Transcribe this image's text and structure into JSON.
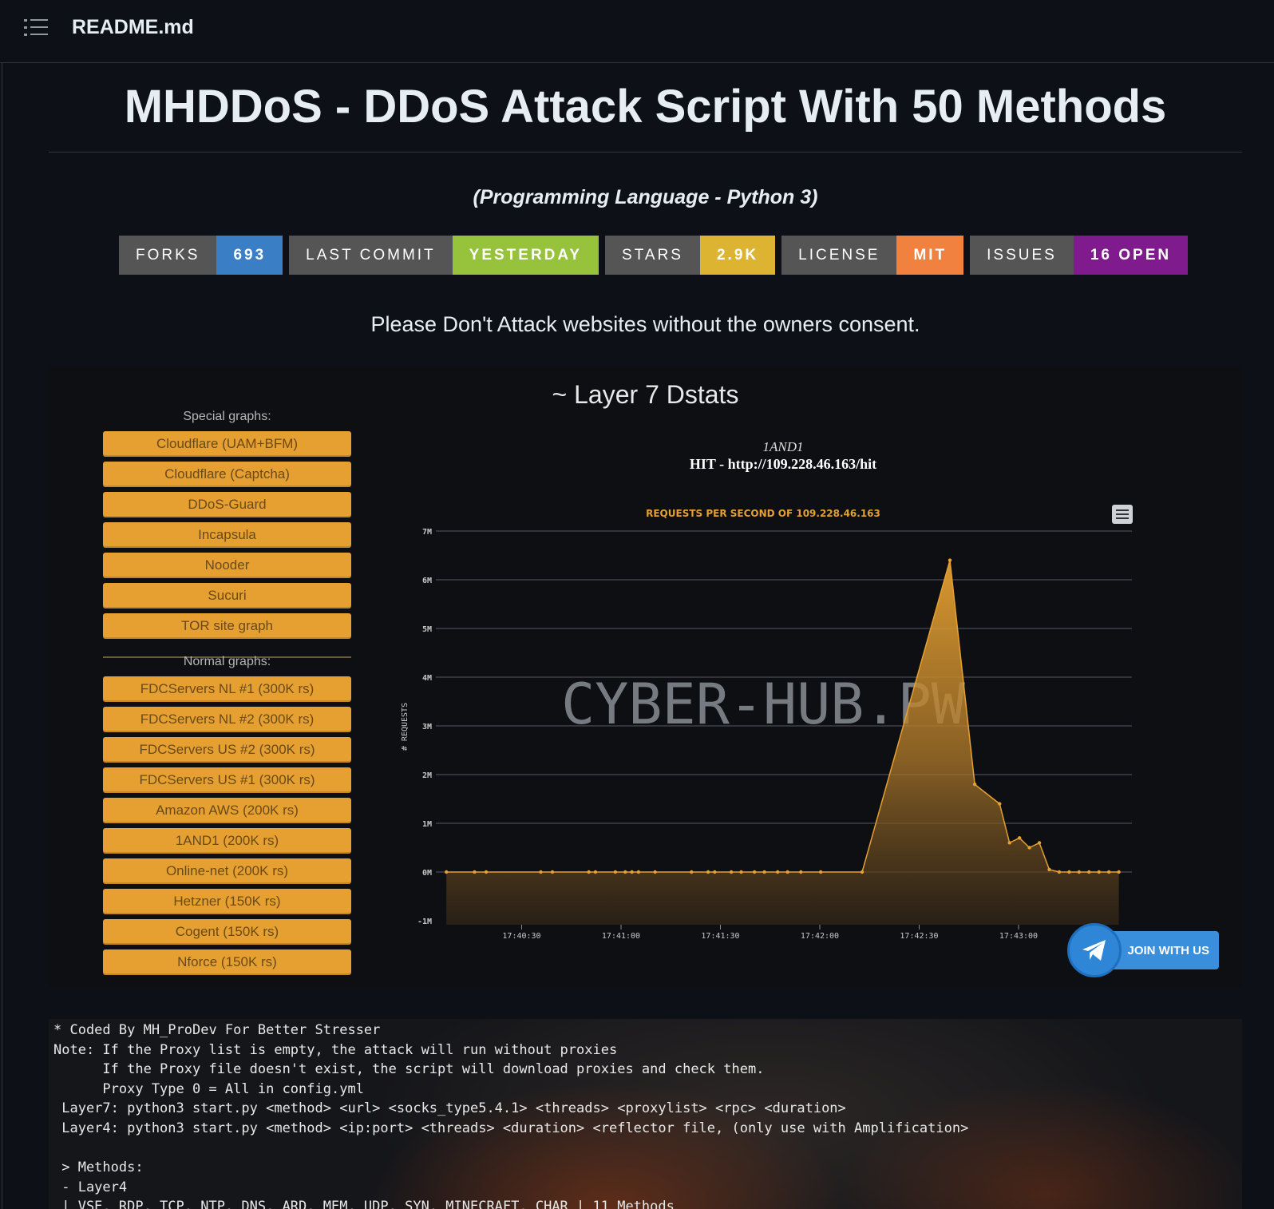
{
  "header": {
    "title": "README.md",
    "menu_icon": "list-icon"
  },
  "readme": {
    "heading": "MHDDoS - DDoS Attack Script With 50 Methods",
    "subtitle": "(Programming Language - Python 3)",
    "badges": [
      {
        "label": "FORKS",
        "value": "693",
        "color": "#3a7fc6"
      },
      {
        "label": "LAST COMMIT",
        "value": "YESTERDAY",
        "color": "#97c23c"
      },
      {
        "label": "STARS",
        "value": "2.9K",
        "color": "#dcb432"
      },
      {
        "label": "LICENSE",
        "value": "MIT",
        "color": "#f0813f"
      },
      {
        "label": "ISSUES",
        "value": "16 OPEN",
        "color": "#7f1b8c"
      }
    ],
    "notice": "Please Don't Attack websites without the owners consent."
  },
  "dstat": {
    "title": "~ Layer 7 Dstats",
    "special_label": "Special graphs:",
    "special": [
      "Cloudflare (UAM+BFM)",
      "Cloudflare (Captcha)",
      "DDoS-Guard",
      "Incapsula",
      "Nooder",
      "Sucuri",
      "TOR site graph"
    ],
    "normal_label": "Normal graphs:",
    "normal": [
      "FDCServers NL #1 (300K rs)",
      "FDCServers NL #2 (300K rs)",
      "FDCServers US #2 (300K rs)",
      "FDCServers US #1 (300K rs)",
      "Amazon AWS (200K rs)",
      "1AND1 (200K rs)",
      "Online-net (200K rs)",
      "Hetzner (150K rs)",
      "Cogent (150K rs)",
      "Nforce (150K rs)"
    ],
    "chart_title": "1AND1",
    "chart_hit": "HIT - http://109.228.46.163/hit",
    "watermark": "CYBER-HUB.PW",
    "join_label": "JOIN WITH US",
    "accent": "#e5a031"
  },
  "chart_data": {
    "type": "area",
    "title": "REQUESTS PER SECOND OF 109.228.46.163",
    "ylabel": "# REQUESTS",
    "y_ticks": [
      "-1M",
      "0M",
      "1M",
      "2M",
      "3M",
      "4M",
      "5M",
      "6M",
      "7M"
    ],
    "ylim": [
      -1,
      7
    ],
    "x_ticks": [
      {
        "t": 30,
        "label": "17:40:30"
      },
      {
        "t": 60,
        "label": "17:41:00"
      },
      {
        "t": 90,
        "label": "17:41:30"
      },
      {
        "t": 120,
        "label": "17:42:00"
      },
      {
        "t": 150,
        "label": "17:42:30"
      },
      {
        "t": 180,
        "label": "17:43:00"
      }
    ],
    "series": [
      {
        "points": [
          [
            8,
            0
          ],
          [
            16.5,
            0
          ],
          [
            20,
            0
          ],
          [
            36.5,
            0
          ],
          [
            40,
            0
          ],
          [
            51,
            0
          ],
          [
            53,
            0
          ],
          [
            59,
            0
          ],
          [
            62,
            0
          ],
          [
            64,
            0
          ],
          [
            66,
            0
          ],
          [
            71,
            0
          ],
          [
            82,
            0
          ],
          [
            87,
            0
          ],
          [
            89,
            0
          ],
          [
            94,
            0
          ],
          [
            97,
            0
          ],
          [
            101,
            0
          ],
          [
            104,
            0
          ],
          [
            108,
            0
          ],
          [
            111,
            0
          ],
          [
            115,
            0
          ],
          [
            121,
            0
          ],
          [
            133.5,
            0
          ],
          [
            160,
            6.4
          ],
          [
            167.5,
            1.8
          ],
          [
            175,
            1.4
          ],
          [
            178,
            0.6
          ],
          [
            181,
            0.7
          ],
          [
            184,
            0.5
          ],
          [
            187,
            0.6
          ],
          [
            190,
            0.05
          ],
          [
            193,
            0
          ],
          [
            196,
            0
          ],
          [
            199,
            0
          ],
          [
            202,
            0
          ],
          [
            205,
            0
          ],
          [
            208,
            0
          ],
          [
            211,
            0
          ]
        ]
      }
    ]
  },
  "terminal": {
    "lines": [
      "* Coded By MH_ProDev For Better Stresser",
      "Note: If the Proxy list is empty, the attack will run without proxies",
      "      If the Proxy file doesn't exist, the script will download proxies and check them.",
      "      Proxy Type 0 = All in config.yml",
      " Layer7: python3 start.py <method> <url> <socks_type5.4.1> <threads> <proxylist> <rpc> <duration>",
      " Layer4: python3 start.py <method> <ip:port> <threads> <duration> <reflector file, (only use with Amplification>",
      "",
      " > Methods:",
      " - Layer4",
      " | VSE, RDP, TCP, NTP, DNS, ARD, MEM, UDP, SYN, MINECRAFT, CHAR | 11 Methods"
    ]
  }
}
